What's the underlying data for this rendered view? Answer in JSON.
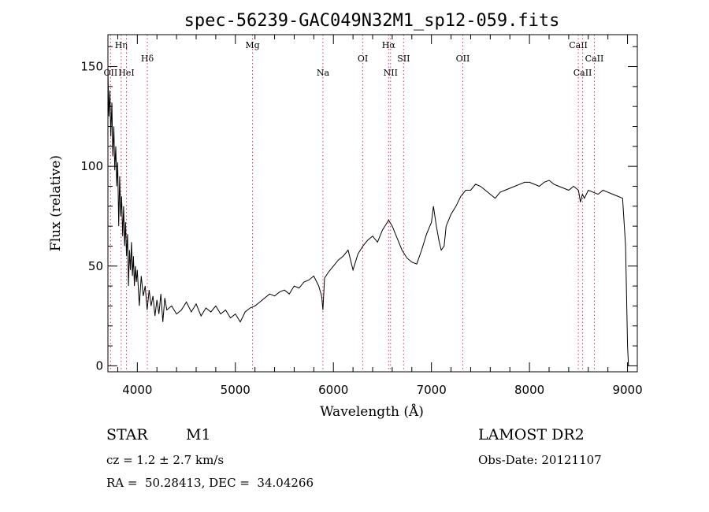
{
  "chart_data": {
    "type": "line",
    "title": "spec-56239-GAC049N32M1_sp12-059.fits",
    "xlabel": "Wavelength (Å)",
    "ylabel": "Flux (relative)",
    "xlim": [
      3700,
      9100
    ],
    "ylim": [
      -3,
      166
    ],
    "xticks": [
      4000,
      5000,
      6000,
      7000,
      8000,
      9000
    ],
    "yticks": [
      0,
      50,
      100,
      150
    ],
    "grid": false,
    "series": [
      {
        "x": [
          3700,
          3710,
          3720,
          3730,
          3740,
          3750,
          3760,
          3770,
          3780,
          3790,
          3800,
          3810,
          3820,
          3830,
          3840,
          3850,
          3860,
          3870,
          3880,
          3890,
          3900,
          3910,
          3920,
          3930,
          3940,
          3950,
          3960,
          3970,
          3980,
          3990,
          4000,
          4020,
          4040,
          4060,
          4080,
          4100,
          4120,
          4140,
          4160,
          4180,
          4200,
          4220,
          4240,
          4260,
          4280,
          4300,
          4350,
          4400,
          4450,
          4500,
          4550,
          4600,
          4650,
          4700,
          4750,
          4800,
          4850,
          4900,
          4950,
          5000,
          5050,
          5100,
          5150,
          5200,
          5250,
          5300,
          5350,
          5400,
          5450,
          5500,
          5550,
          5600,
          5650,
          5700,
          5750,
          5800,
          5850,
          5880,
          5893,
          5910,
          5950,
          6000,
          6050,
          6100,
          6150,
          6200,
          6250,
          6300,
          6350,
          6400,
          6450,
          6500,
          6550,
          6563,
          6600,
          6650,
          6700,
          6750,
          6800,
          6850,
          6900,
          6950,
          7000,
          7020,
          7050,
          7080,
          7100,
          7130,
          7150,
          7200,
          7250,
          7300,
          7350,
          7400,
          7450,
          7500,
          7550,
          7600,
          7650,
          7700,
          7750,
          7800,
          7850,
          7900,
          7950,
          8000,
          8050,
          8100,
          8150,
          8200,
          8250,
          8300,
          8350,
          8400,
          8450,
          8500,
          8520,
          8540,
          8560,
          8600,
          8650,
          8700,
          8750,
          8800,
          8850,
          8900,
          8950,
          8980,
          9000,
          9010
        ],
        "y": [
          148,
          125,
          138,
          115,
          132,
          105,
          120,
          98,
          110,
          90,
          102,
          70,
          95,
          75,
          85,
          65,
          80,
          60,
          72,
          55,
          66,
          40,
          58,
          48,
          62,
          45,
          55,
          40,
          50,
          42,
          48,
          30,
          45,
          35,
          40,
          28,
          38,
          30,
          35,
          25,
          33,
          26,
          36,
          22,
          34,
          28,
          30,
          26,
          28,
          32,
          27,
          31,
          25,
          29,
          27,
          30,
          26,
          28,
          24,
          26,
          22,
          27,
          29,
          30,
          32,
          34,
          36,
          35,
          37,
          38,
          36,
          40,
          39,
          42,
          43,
          45,
          40,
          35,
          28,
          44,
          47,
          50,
          53,
          55,
          58,
          48,
          56,
          60,
          63,
          65,
          62,
          68,
          72,
          73,
          70,
          64,
          58,
          54,
          52,
          51,
          58,
          66,
          72,
          80,
          70,
          62,
          58,
          60,
          70,
          76,
          80,
          85,
          88,
          88,
          91,
          90,
          88,
          86,
          84,
          87,
          88,
          89,
          90,
          91,
          92,
          92,
          91,
          90,
          92,
          93,
          91,
          90,
          89,
          88,
          90,
          88,
          82,
          86,
          84,
          88,
          87,
          86,
          88,
          87,
          86,
          85,
          84,
          60,
          10,
          0
        ]
      }
    ],
    "lines": [
      {
        "label": "Hη",
        "x": 3835,
        "row": 0
      },
      {
        "label": "Hδ",
        "x": 4102,
        "row": 1
      },
      {
        "label": "Mg",
        "x": 5175,
        "row": 0
      },
      {
        "label": "Na",
        "x": 5893,
        "row": 2
      },
      {
        "label": "OI",
        "x": 6300,
        "row": 1
      },
      {
        "label": "Hα",
        "x": 6563,
        "row": 0
      },
      {
        "label": "NII",
        "x": 6583,
        "row": 2
      },
      {
        "label": "SII",
        "x": 6716,
        "row": 1
      },
      {
        "label": "OII",
        "x": 7320,
        "row": 1
      },
      {
        "label": "CaII",
        "x": 8498,
        "row": 0
      },
      {
        "label": "CaII",
        "x": 8542,
        "row": 2
      },
      {
        "label": "CaII",
        "x": 8662,
        "row": 1
      },
      {
        "label": "OII",
        "x": 3727,
        "row": 2
      },
      {
        "label": "HeI",
        "x": 3889,
        "row": 2
      }
    ]
  },
  "info": {
    "object_class": "STAR",
    "subclass": "M1",
    "survey": "LAMOST DR2",
    "cz": "cz = 1.2 ± 2.7 km/s",
    "obs_date": "Obs-Date: 20121107",
    "coords": "RA =  50.28413, DEC =  34.04266"
  },
  "colors": {
    "spectrum": "#000000",
    "line_markers": "#e0306a"
  }
}
